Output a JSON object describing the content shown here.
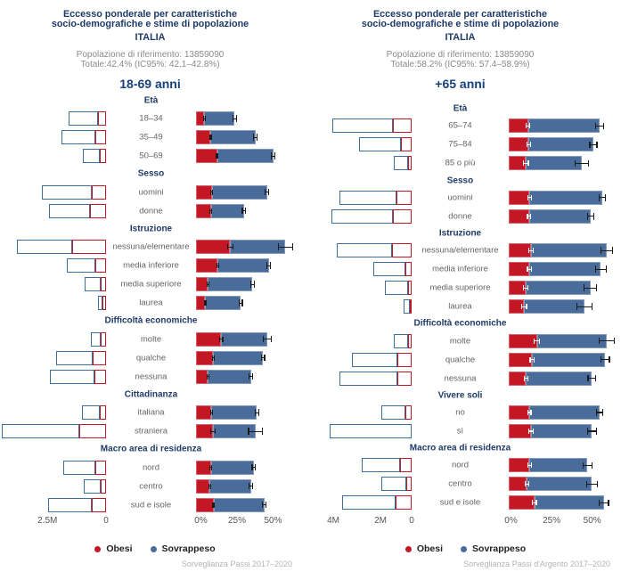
{
  "legend": {
    "items": [
      {
        "label": "Obesi",
        "color": "#c31726"
      },
      {
        "label": "Sovrappeso",
        "color": "#4a6c9b"
      }
    ]
  },
  "panels": [
    {
      "title_lines": [
        "Eccesso ponderale per caratteristiche",
        "socio-demografiche e stime di popolazione",
        "ITALIA"
      ],
      "population_line": "Popolazione di riferimento: 13859090",
      "total_line": "Totale:42.4% (IC95%: 42.1–42.8%)",
      "age_group": "18-69 anni",
      "source": "Sorveglianza Passi 2017–2020",
      "chart_data": {
        "type": "bar",
        "orientation": "horizontal-mirrored",
        "pop_axis": {
          "unit": "millions",
          "max": 4.45,
          "ticks": [
            {
              "label": "2.5M",
              "value": 2.5
            },
            {
              "label": "0",
              "value": 0
            }
          ]
        },
        "pct_axis": {
          "unit": "percent",
          "max": 79,
          "ticks": [
            {
              "label": "0%",
              "value": 0
            },
            {
              "label": "25%",
              "value": 25
            },
            {
              "label": "50%",
              "value": 50
            }
          ]
        },
        "groups": [
          {
            "header": "Età",
            "rows": [
              {
                "label": "18–34",
                "obesi_pct": 5.7,
                "totale_pct": 26.7,
                "ci": 1.0,
                "ci_obesi": 0.5,
                "pop_sovrappeso_m": 1.27,
                "pop_obesi_m": 0.33
              },
              {
                "label": "35–49",
                "obesi_pct": 9.9,
                "totale_pct": 41.2,
                "ci": 1.0,
                "ci_obesi": 0.6,
                "pop_sovrappeso_m": 1.46,
                "pop_obesi_m": 0.45
              },
              {
                "label": "50–69",
                "obesi_pct": 14.8,
                "totale_pct": 53.5,
                "ci": 1.1,
                "ci_obesi": 0.8,
                "pop_sovrappeso_m": 0.75,
                "pop_obesi_m": 0.25
              }
            ]
          },
          {
            "header": "Sesso",
            "rows": [
              {
                "label": "uomini",
                "obesi_pct": 10.9,
                "totale_pct": 49.2,
                "ci": 1.0,
                "ci_obesi": 0.6,
                "pop_sovrappeso_m": 2.11,
                "pop_obesi_m": 0.62
              },
              {
                "label": "donne",
                "obesi_pct": 10.3,
                "totale_pct": 33.3,
                "ci": 0.9,
                "ci_obesi": 0.5,
                "pop_sovrappeso_m": 1.74,
                "pop_obesi_m": 0.7
              }
            ]
          },
          {
            "header": "Istruzione",
            "rows": [
              {
                "label": "nessuna/elementare",
                "obesi_pct": 23.6,
                "totale_pct": 62.0,
                "ci": 5.3,
                "ci_obesi": 2.2,
                "pop_sovrappeso_m": 2.38,
                "pop_obesi_m": 1.43
              },
              {
                "label": "media inferiore",
                "obesi_pct": 15.0,
                "totale_pct": 50.4,
                "ci": 1.2,
                "ci_obesi": 0.8,
                "pop_sovrappeso_m": 1.22,
                "pop_obesi_m": 0.47
              },
              {
                "label": "media superiore",
                "obesi_pct": 8.2,
                "totale_pct": 39.1,
                "ci": 1.0,
                "ci_obesi": 0.6,
                "pop_sovrappeso_m": 0.71,
                "pop_obesi_m": 0.22
              },
              {
                "label": "laurea",
                "obesi_pct": 6.2,
                "totale_pct": 30.9,
                "ci": 1.4,
                "ci_obesi": 0.7,
                "pop_sovrappeso_m": 0.17,
                "pop_obesi_m": 0.16
              }
            ]
          },
          {
            "header": "Difficoltà economiche",
            "rows": [
              {
                "label": "molte",
                "obesi_pct": 17.5,
                "totale_pct": 49.4,
                "ci": 3.0,
                "ci_obesi": 1.4,
                "pop_sovrappeso_m": 0.44,
                "pop_obesi_m": 0.22
              },
              {
                "label": "qualche",
                "obesi_pct": 11.9,
                "totale_pct": 46.3,
                "ci": 1.3,
                "ci_obesi": 0.8,
                "pop_sovrappeso_m": 1.57,
                "pop_obesi_m": 0.56
              },
              {
                "label": "nessuna",
                "obesi_pct": 8.2,
                "totale_pct": 38.1,
                "ci": 1.0,
                "ci_obesi": 0.6,
                "pop_sovrappeso_m": 1.87,
                "pop_obesi_m": 0.51
              }
            ]
          },
          {
            "header": "Cittadinanza",
            "rows": [
              {
                "label": "italiana",
                "obesi_pct": 10.7,
                "totale_pct": 42.2,
                "ci": 0.6,
                "ci_obesi": 0.3,
                "pop_sovrappeso_m": 0.78,
                "pop_obesi_m": 0.25
              },
              {
                "label": "straniera",
                "obesi_pct": 11.7,
                "totale_pct": 41.2,
                "ci": 5.2,
                "ci_obesi": 1.8,
                "pop_sovrappeso_m": 3.29,
                "pop_obesi_m": 1.16
              }
            ]
          },
          {
            "header": "Macro area di residenza",
            "rows": [
              {
                "label": "nord",
                "obesi_pct": 10.3,
                "totale_pct": 40.1,
                "ci": 1.0,
                "ci_obesi": 0.5,
                "pop_sovrappeso_m": 1.37,
                "pop_obesi_m": 0.44
              },
              {
                "label": "centro",
                "obesi_pct": 9.4,
                "totale_pct": 38.1,
                "ci": 1.2,
                "ci_obesi": 0.6,
                "pop_sovrappeso_m": 0.75,
                "pop_obesi_m": 0.21
              },
              {
                "label": "sud e isole",
                "obesi_pct": 12.3,
                "totale_pct": 47.3,
                "ci": 1.0,
                "ci_obesi": 0.6,
                "pop_sovrappeso_m": 1.84,
                "pop_obesi_m": 0.62
              }
            ]
          }
        ]
      }
    },
    {
      "title_lines": [
        "Eccesso ponderale per caratteristiche",
        "socio-demografiche e stime di popolazione",
        "ITALIA"
      ],
      "population_line": "Popolazione di riferimento: 13859090",
      "total_line": "Totale:58.2% (IC95%: 57.4–58.9%)",
      "age_group": "+65 anni",
      "source": "Sorveglianza Passi d'Argento 2017–2020",
      "chart_data": {
        "type": "bar",
        "orientation": "horizontal-mirrored",
        "pop_axis": {
          "unit": "millions",
          "max": 4.23,
          "ticks": [
            {
              "label": "4M",
              "value": 4
            },
            {
              "label": "2M",
              "value": 2
            },
            {
              "label": "0",
              "value": 0
            }
          ]
        },
        "pct_axis": {
          "unit": "percent",
          "max": 69,
          "ticks": [
            {
              "label": "0%",
              "value": 0
            },
            {
              "label": "25%",
              "value": 25
            },
            {
              "label": "50%",
              "value": 50
            }
          ]
        },
        "groups": [
          {
            "header": "Età",
            "rows": [
              {
                "label": "65–74",
                "obesi_pct": 11.9,
                "totale_pct": 55.8,
                "ci": 2.8,
                "ci_obesi": 1.4,
                "pop_sovrappeso_m": 3.1,
                "pop_obesi_m": 0.94
              },
              {
                "label": "75–84",
                "obesi_pct": 12.3,
                "totale_pct": 52.1,
                "ci": 2.5,
                "ci_obesi": 1.3,
                "pop_sovrappeso_m": 2.12,
                "pop_obesi_m": 0.56
              },
              {
                "label": "85 o più",
                "obesi_pct": 10.6,
                "totale_pct": 44.8,
                "ci": 4.5,
                "ci_obesi": 1.8,
                "pop_sovrappeso_m": 0.71,
                "pop_obesi_m": 0.18
              }
            ]
          },
          {
            "header": "Sesso",
            "rows": [
              {
                "label": "uomini",
                "obesi_pct": 12.8,
                "totale_pct": 57.6,
                "ci": 2.3,
                "ci_obesi": 1.3,
                "pop_sovrappeso_m": 2.91,
                "pop_obesi_m": 0.76
              },
              {
                "label": "donne",
                "obesi_pct": 12.4,
                "totale_pct": 50.3,
                "ci": 2.2,
                "ci_obesi": 1.2,
                "pop_sovrappeso_m": 3.12,
                "pop_obesi_m": 0.97
              }
            ]
          },
          {
            "header": "Istruzione",
            "rows": [
              {
                "label": "nessuna/elementare",
                "obesi_pct": 13.7,
                "totale_pct": 60.3,
                "ci": 4.1,
                "ci_obesi": 1.8,
                "pop_sovrappeso_m": 2.83,
                "pop_obesi_m": 0.99
              },
              {
                "label": "media inferiore",
                "obesi_pct": 12.8,
                "totale_pct": 56.7,
                "ci": 3.6,
                "ci_obesi": 1.6,
                "pop_sovrappeso_m": 1.64,
                "pop_obesi_m": 0.33
              },
              {
                "label": "media superiore",
                "obesi_pct": 10.6,
                "totale_pct": 50.3,
                "ci": 4.1,
                "ci_obesi": 1.7,
                "pop_sovrappeso_m": 1.18,
                "pop_obesi_m": 0.18
              },
              {
                "label": "laurea",
                "obesi_pct": 9.5,
                "totale_pct": 46.6,
                "ci": 5.0,
                "ci_obesi": 1.8,
                "pop_sovrappeso_m": 0.33,
                "pop_obesi_m": 0.1
              }
            ]
          },
          {
            "header": "Difficoltà economiche",
            "rows": [
              {
                "label": "molte",
                "obesi_pct": 17.4,
                "totale_pct": 60.3,
                "ci": 5.0,
                "ci_obesi": 2.0,
                "pop_sovrappeso_m": 0.71,
                "pop_obesi_m": 0.18
              },
              {
                "label": "qualche",
                "obesi_pct": 14.3,
                "totale_pct": 59.4,
                "ci": 2.9,
                "ci_obesi": 1.5,
                "pop_sovrappeso_m": 2.35,
                "pop_obesi_m": 0.71
              },
              {
                "label": "nessuna",
                "obesi_pct": 10.6,
                "totale_pct": 51.2,
                "ci": 2.7,
                "ci_obesi": 1.3,
                "pop_sovrappeso_m": 2.93,
                "pop_obesi_m": 0.74
              }
            ]
          },
          {
            "header": "Vivere soli",
            "rows": [
              {
                "label": "no",
                "obesi_pct": 12.8,
                "totale_pct": 55.8,
                "ci": 2.2,
                "ci_obesi": 1.2,
                "pop_sovrappeso_m": 1.24,
                "pop_obesi_m": 0.3
              },
              {
                "label": "sì",
                "obesi_pct": 13.7,
                "totale_pct": 51.2,
                "ci": 3.2,
                "ci_obesi": 1.5,
                "pop_sovrappeso_m": 4.2,
                "pop_obesi_m": 0
              }
            ]
          },
          {
            "header": "Macro area di residenza",
            "rows": [
              {
                "label": "nord",
                "obesi_pct": 12.8,
                "totale_pct": 48.5,
                "ci": 3.2,
                "ci_obesi": 1.4,
                "pop_sovrappeso_m": 1.94,
                "pop_obesi_m": 0.59
              },
              {
                "label": "centro",
                "obesi_pct": 11.2,
                "totale_pct": 51.2,
                "ci": 3.7,
                "ci_obesi": 1.5,
                "pop_sovrappeso_m": 1.29,
                "pop_obesi_m": 0.26
              },
              {
                "label": "sud e isole",
                "obesi_pct": 15.7,
                "totale_pct": 58.5,
                "ci": 3.2,
                "ci_obesi": 1.6,
                "pop_sovrappeso_m": 2.71,
                "pop_obesi_m": 0.83
              }
            ]
          }
        ]
      }
    }
  ]
}
